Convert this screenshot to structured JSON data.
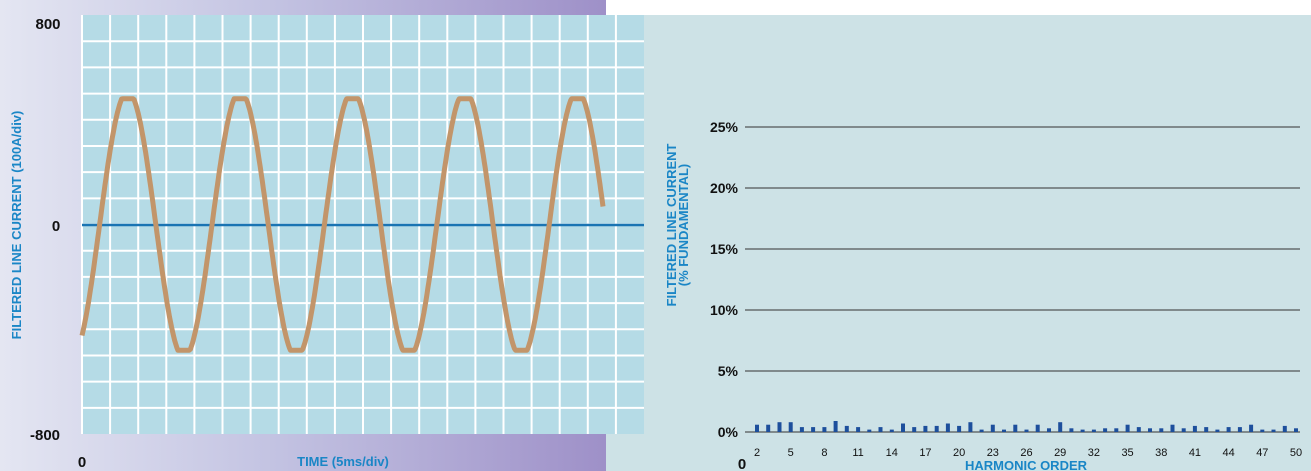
{
  "colors": {
    "grid_fill": "#b5dbe6",
    "grid_lines": "#ffffff",
    "waveform": "#c2956a",
    "zero_line": "#1a74b3",
    "label_blue": "#1a86c6",
    "bars": "#1d4f9c",
    "right_panel": "#cde2e6",
    "axis_text": "#111111"
  },
  "chart_data": [
    {
      "type": "line",
      "xlabel": "TIME (5ms/div)",
      "ylabel": "FILTERED LINE CURRENT (100A/div)",
      "x_tick_labels": [
        "0"
      ],
      "y_tick_labels": [
        "800",
        "0",
        "-800"
      ],
      "ylim": [
        -800,
        800
      ],
      "x_units": "ms",
      "xlim": [
        0,
        100
      ],
      "x_divisions": 20,
      "y_divisions": 16,
      "grid": true,
      "zero_line": true,
      "waveform": {
        "shape": "sine",
        "amplitude_A": 480,
        "frequency_Hz": 50,
        "cycles": 5,
        "start_value_A": -400
      }
    },
    {
      "type": "bar",
      "xlabel": "HARMONIC ORDER",
      "ylabel": [
        "FILTERED LINE CURRENT",
        "(% FUNDAMENTAL)"
      ],
      "y_tick_labels": [
        "0%",
        "5%",
        "10%",
        "15%",
        "20%",
        "25%"
      ],
      "x_zero_label": "0",
      "ylim": [
        0,
        25
      ],
      "grid": true,
      "categories": [
        2,
        3,
        4,
        5,
        6,
        7,
        8,
        9,
        10,
        11,
        12,
        13,
        14,
        15,
        16,
        17,
        18,
        19,
        20,
        21,
        22,
        23,
        24,
        25,
        26,
        27,
        28,
        29,
        30,
        31,
        32,
        33,
        34,
        35,
        36,
        37,
        38,
        39,
        40,
        41,
        42,
        43,
        44,
        45,
        46,
        47,
        48,
        49,
        50
      ],
      "x_tick_labels": [
        "2",
        "5",
        "8",
        "11",
        "14",
        "17",
        "20",
        "23",
        "26",
        "29",
        "32",
        "35",
        "38",
        "41",
        "44",
        "47",
        "50"
      ],
      "values": [
        0.6,
        0.6,
        0.8,
        0.8,
        0.4,
        0.4,
        0.4,
        0.9,
        0.5,
        0.4,
        0.2,
        0.4,
        0.2,
        0.7,
        0.4,
        0.5,
        0.5,
        0.7,
        0.5,
        0.8,
        0.2,
        0.6,
        0.2,
        0.6,
        0.2,
        0.6,
        0.3,
        0.8,
        0.3,
        0.2,
        0.2,
        0.3,
        0.3,
        0.6,
        0.4,
        0.3,
        0.3,
        0.6,
        0.3,
        0.5,
        0.4,
        0.2,
        0.4,
        0.4,
        0.6,
        0.2,
        0.2,
        0.5,
        0.3
      ]
    }
  ]
}
